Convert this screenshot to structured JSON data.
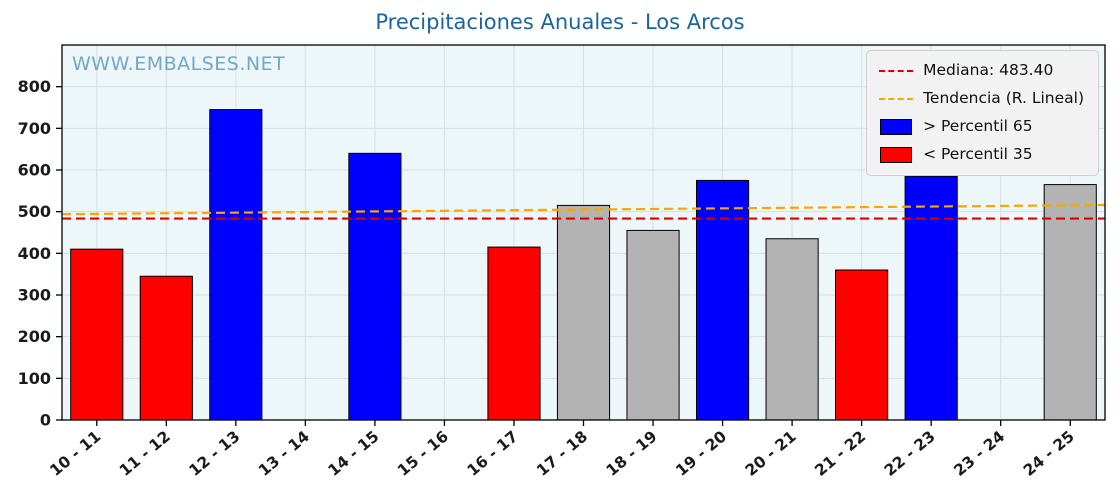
{
  "title": "Precipitaciones Anuales - Los Arcos",
  "watermark": "WWW.EMBALSES.NET",
  "legend": {
    "median_label": "Mediana: 483.40",
    "trend_label": "Tendencia (R. Lineal)",
    "above_label": "> Percentil 65",
    "below_label": "< Percentil 35"
  },
  "colors": {
    "title": "#1a64a0",
    "watermark": "#72a7c8",
    "above": "#0000ff",
    "below": "#ff0000",
    "mid": "#b3b3b3",
    "none": "#ffffff",
    "median_line": "#dd0000",
    "trend_line": "#f5a800",
    "plot_bg": "#edf6f9",
    "grid": "#d6dee2",
    "legend_bg": "#f2f2f2",
    "tick_label": "#1a1a1a"
  },
  "chart_data": {
    "type": "bar",
    "title": "Precipitaciones Anuales - Los Arcos",
    "categories": [
      "10 - 11",
      "11 - 12",
      "12 - 13",
      "13 - 14",
      "14 - 15",
      "15 - 16",
      "16 - 17",
      "17 - 18",
      "18 - 19",
      "19 - 20",
      "20 - 21",
      "21 - 22",
      "22 - 23",
      "23 - 24",
      "24 - 25"
    ],
    "values": [
      410,
      345,
      745,
      0,
      640,
      0,
      415,
      515,
      455,
      575,
      435,
      360,
      585,
      0,
      565
    ],
    "bar_classes": [
      "below",
      "below",
      "above",
      "none",
      "above",
      "none",
      "below",
      "mid",
      "mid",
      "above",
      "mid",
      "below",
      "above",
      "none",
      "mid"
    ],
    "median": 483.4,
    "trend": {
      "start": 494,
      "end": 516
    },
    "xlabel": "",
    "ylabel": "",
    "ylim": [
      0,
      900
    ],
    "yticks": [
      0,
      100,
      200,
      300,
      400,
      500,
      600,
      700,
      800
    ],
    "grid": true,
    "legend_position": "upper right"
  }
}
